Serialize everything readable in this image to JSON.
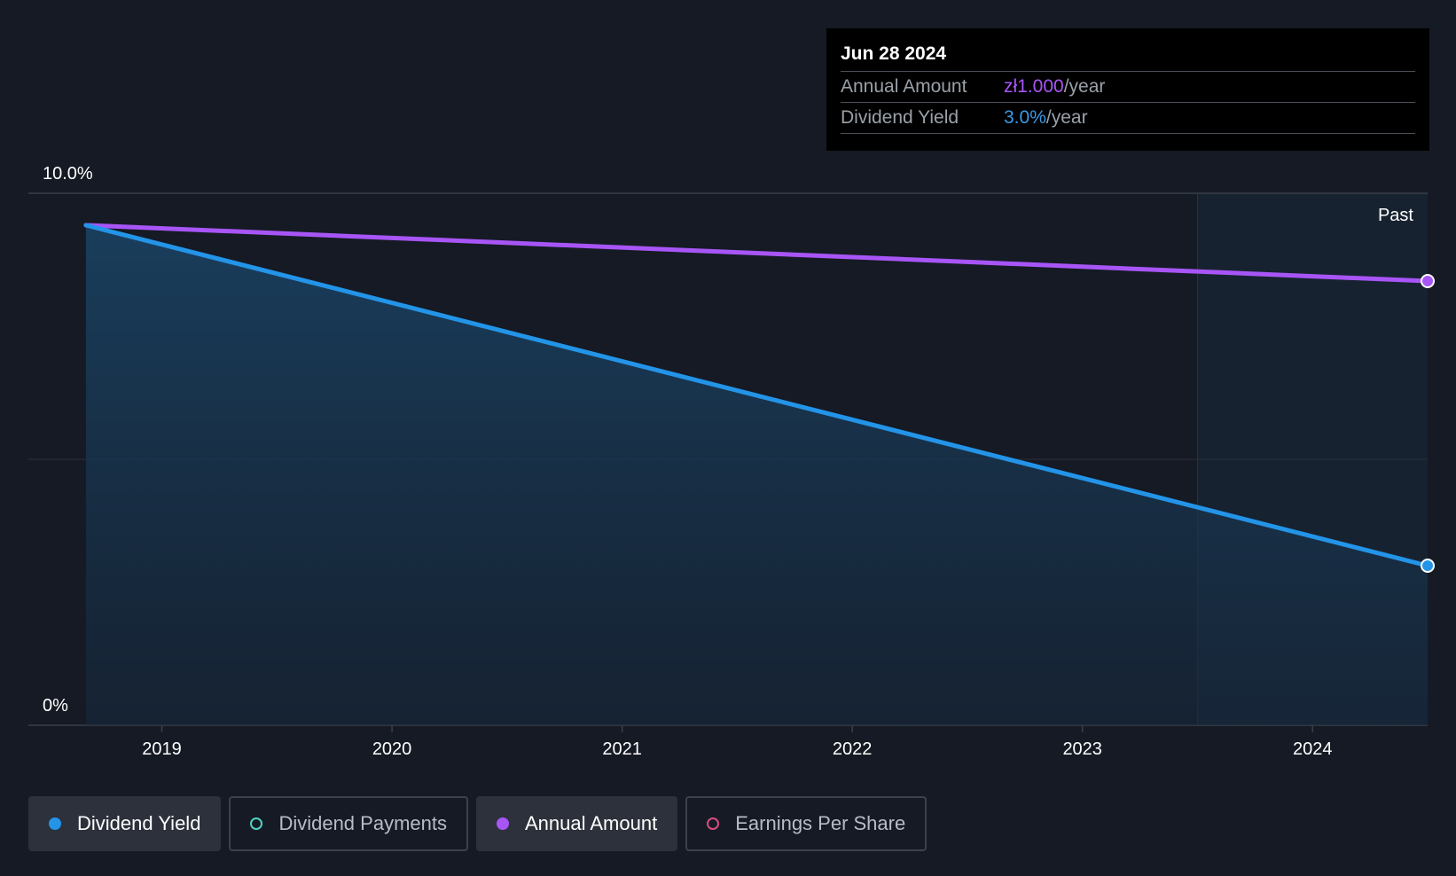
{
  "tooltip": {
    "date": "Jun 28 2024",
    "annual_amount_label": "Annual Amount",
    "annual_amount_value": "zł1.000",
    "annual_amount_unit": "/year",
    "dividend_yield_label": "Dividend Yield",
    "dividend_yield_value": "3.0%",
    "dividend_yield_unit": "/year"
  },
  "legend": [
    {
      "label": "Dividend Yield",
      "active": true,
      "color": "#2394e8",
      "filled": true
    },
    {
      "label": "Dividend Payments",
      "active": false,
      "color": "#4fd1c5",
      "filled": false
    },
    {
      "label": "Annual Amount",
      "active": true,
      "color": "#a855f7",
      "filled": true
    },
    {
      "label": "Earnings Per Share",
      "active": false,
      "color": "#d94c7c",
      "filled": false
    }
  ],
  "colors": {
    "background": "#151a24",
    "dividend_yield": "#2394e8",
    "annual_amount": "#a855f7"
  },
  "chart_data": {
    "type": "line",
    "y_tick_labels": [
      "10.0%",
      "0%"
    ],
    "ylim": [
      0,
      10
    ],
    "x_tick_labels": [
      "2019",
      "2020",
      "2021",
      "2022",
      "2023",
      "2024"
    ],
    "xlim": [
      2018.42,
      2024.5
    ],
    "past_label": "Past",
    "past_region_start": 2023.5,
    "grid": true,
    "series": [
      {
        "name": "Dividend Yield",
        "unit": "%",
        "x": [
          2018.67,
          2024.5
        ],
        "values": [
          9.4,
          3.0
        ]
      },
      {
        "name": "Annual Amount",
        "x": [
          2018.67,
          2024.5
        ],
        "values": [
          9.4,
          8.35
        ]
      }
    ]
  }
}
